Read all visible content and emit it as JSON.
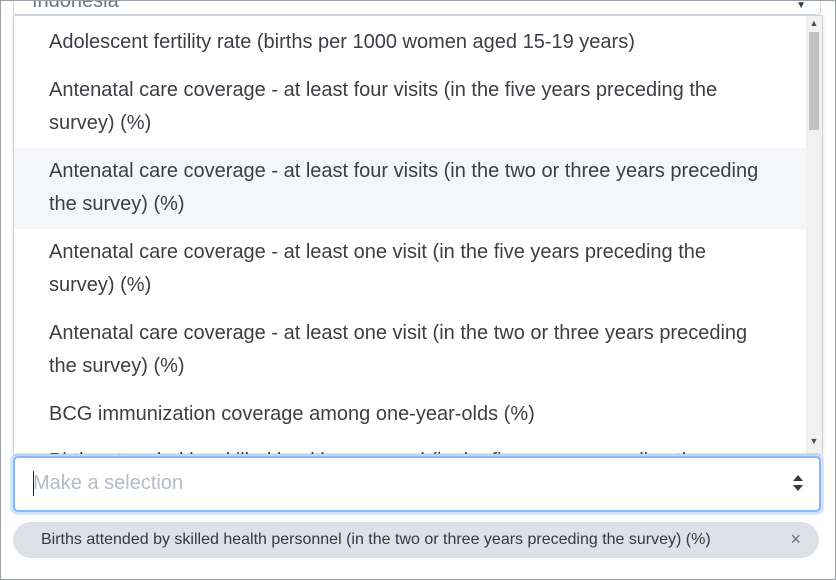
{
  "behind_select": {
    "value": "Indonesia"
  },
  "dropdown": {
    "options": [
      "Adolescent fertility rate (births per 1000 women aged 15-19 years)",
      "Antenatal care coverage - at least four visits (in the five years preceding the survey) (%)",
      "Antenatal care coverage - at least four visits (in the two or three years preceding the survey) (%)",
      "Antenatal care coverage - at least one visit (in the five years preceding the survey) (%)",
      "Antenatal care coverage - at least one visit (in the two or three years preceding the survey) (%)",
      "BCG immunization coverage among one-year-olds (%)",
      "Births attended by skilled health personnel (in the five years preceding the survey) (%)"
    ],
    "hovered_index": 2
  },
  "select": {
    "placeholder": "Make a selection"
  },
  "selected_chip": {
    "label": "Births attended by skilled health personnel (in the two or three years preceding the survey) (%)",
    "remove_symbol": "×"
  }
}
